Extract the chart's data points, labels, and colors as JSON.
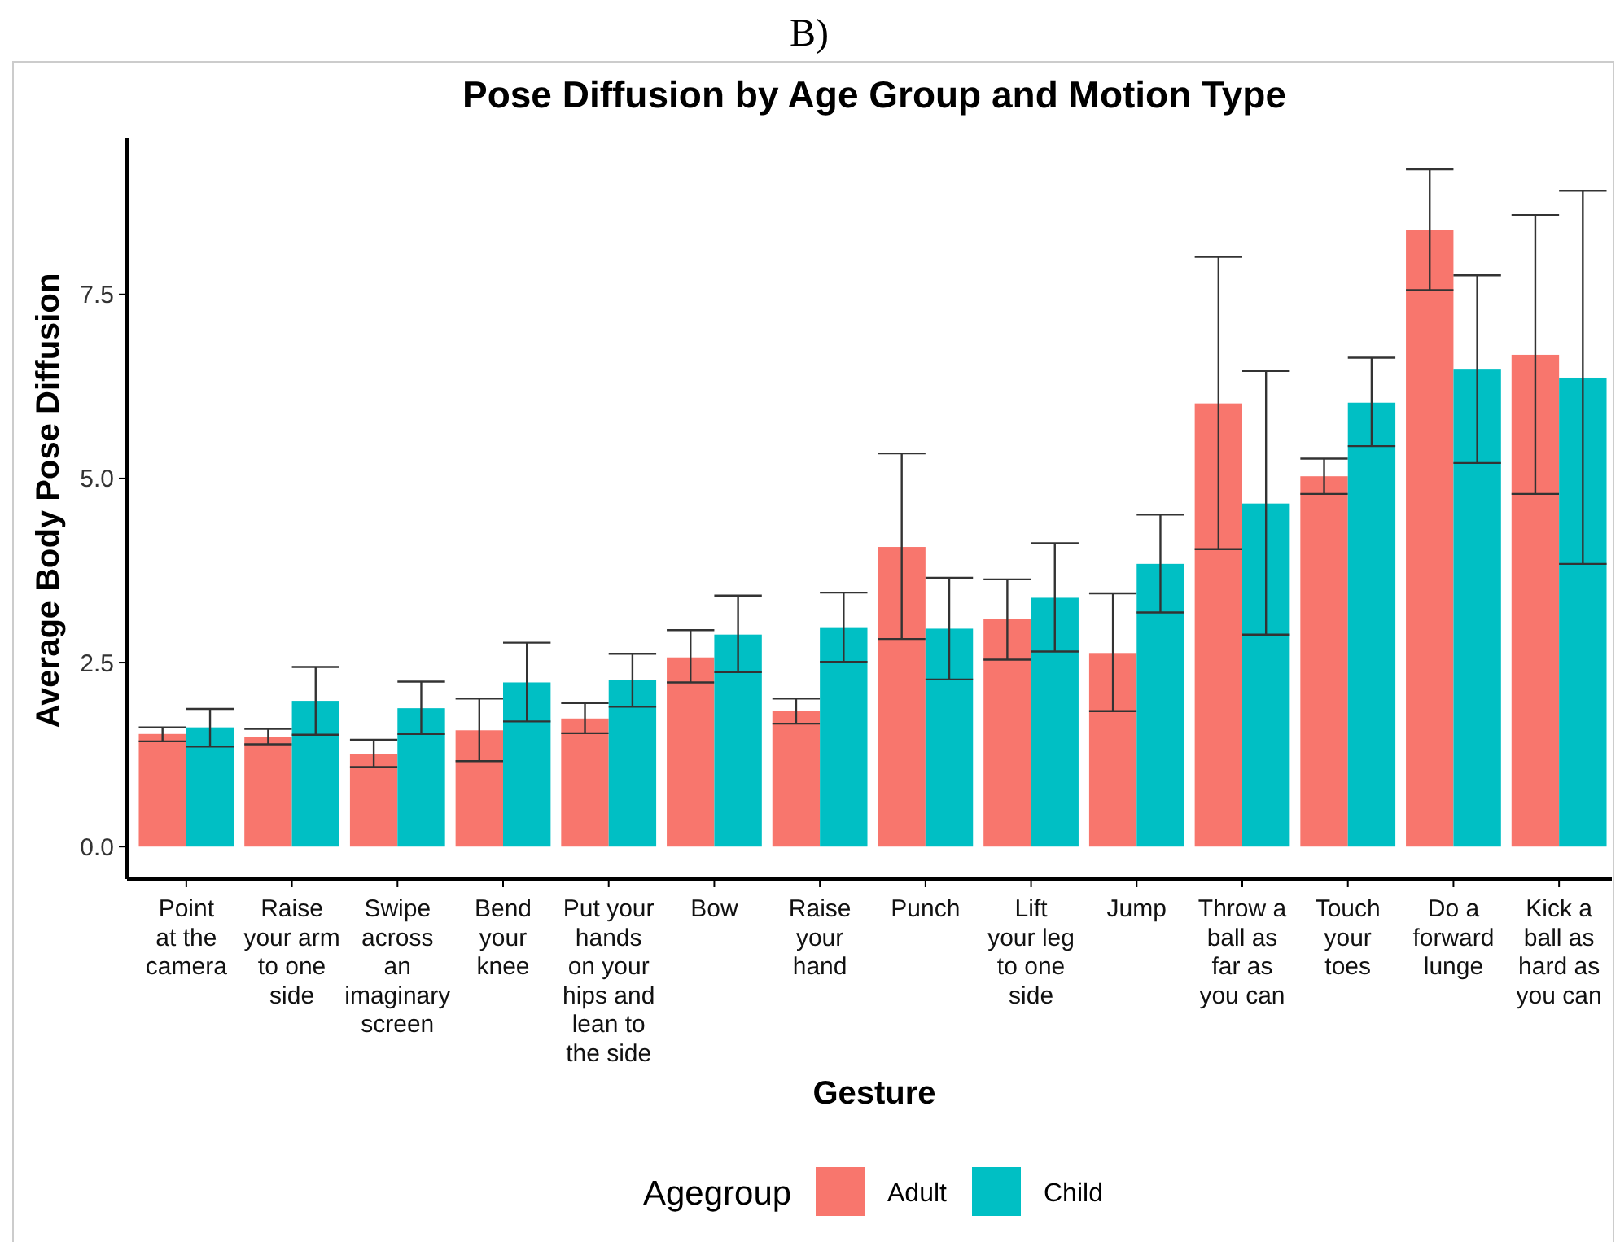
{
  "chart_data": {
    "type": "bar",
    "title": "Pose Diffusion by Age Group and Motion Type",
    "xlabel": "Gesture",
    "ylabel": "Average Body Pose Diffusion",
    "legend_title": "Agegroup",
    "annotations": [
      "B)"
    ],
    "categories": [
      "Point\nat the\ncamera",
      "Raise\nyour arm\nto one\nside",
      "Swipe\nacross\nan\nimaginary\nscreen",
      "Bend\nyour\nknee",
      "Put your\nhands\non your\nhips and\nlean to\nthe side",
      "Bow",
      "Raise\nyour\nhand",
      "Punch",
      "Lift\nyour leg\nto one\nside",
      "Jump",
      "Throw a\nball as\nfar as\nyou can",
      "Touch\nyour\ntoes",
      "Do a\nforward\nlunge",
      "Kick a\nball as\nhard as\nyou can"
    ],
    "series": [
      {
        "name": "Adult",
        "color": "#f8766d",
        "values": [
          1.53,
          1.49,
          1.26,
          1.58,
          1.74,
          2.57,
          1.84,
          4.07,
          3.09,
          2.63,
          6.02,
          5.03,
          8.38,
          6.68
        ],
        "errors": [
          [
            1.43,
            1.62
          ],
          [
            1.39,
            1.6
          ],
          [
            1.08,
            1.45
          ],
          [
            1.16,
            2.01
          ],
          [
            1.54,
            1.95
          ],
          [
            2.23,
            2.94
          ],
          [
            1.67,
            2.01
          ],
          [
            2.82,
            5.34
          ],
          [
            2.54,
            3.63
          ],
          [
            1.84,
            3.44
          ],
          [
            4.04,
            8.01
          ],
          [
            4.79,
            5.27
          ],
          [
            7.56,
            9.2
          ],
          [
            4.79,
            8.58
          ]
        ]
      },
      {
        "name": "Child",
        "color": "#00bfc4",
        "values": [
          1.62,
          1.98,
          1.88,
          2.23,
          2.26,
          2.88,
          2.98,
          2.96,
          3.38,
          3.84,
          4.66,
          6.03,
          6.49,
          6.37
        ],
        "errors": [
          [
            1.36,
            1.87
          ],
          [
            1.52,
            2.44
          ],
          [
            1.53,
            2.24
          ],
          [
            1.7,
            2.77
          ],
          [
            1.9,
            2.62
          ],
          [
            2.37,
            3.41
          ],
          [
            2.51,
            3.45
          ],
          [
            2.27,
            3.65
          ],
          [
            2.65,
            4.12
          ],
          [
            3.18,
            4.51
          ],
          [
            2.88,
            6.46
          ],
          [
            5.44,
            6.64
          ],
          [
            5.21,
            7.76
          ],
          [
            3.84,
            8.91
          ]
        ]
      }
    ],
    "ylim": [
      -0.44,
      9.62
    ],
    "yticks": [
      {
        "value": 0,
        "label": "0.0"
      },
      {
        "value": 2.5,
        "label": "2.5"
      },
      {
        "value": 5,
        "label": "5.0"
      },
      {
        "value": 7.5,
        "label": "7.5"
      }
    ],
    "grid": false,
    "legend": "bottom"
  }
}
